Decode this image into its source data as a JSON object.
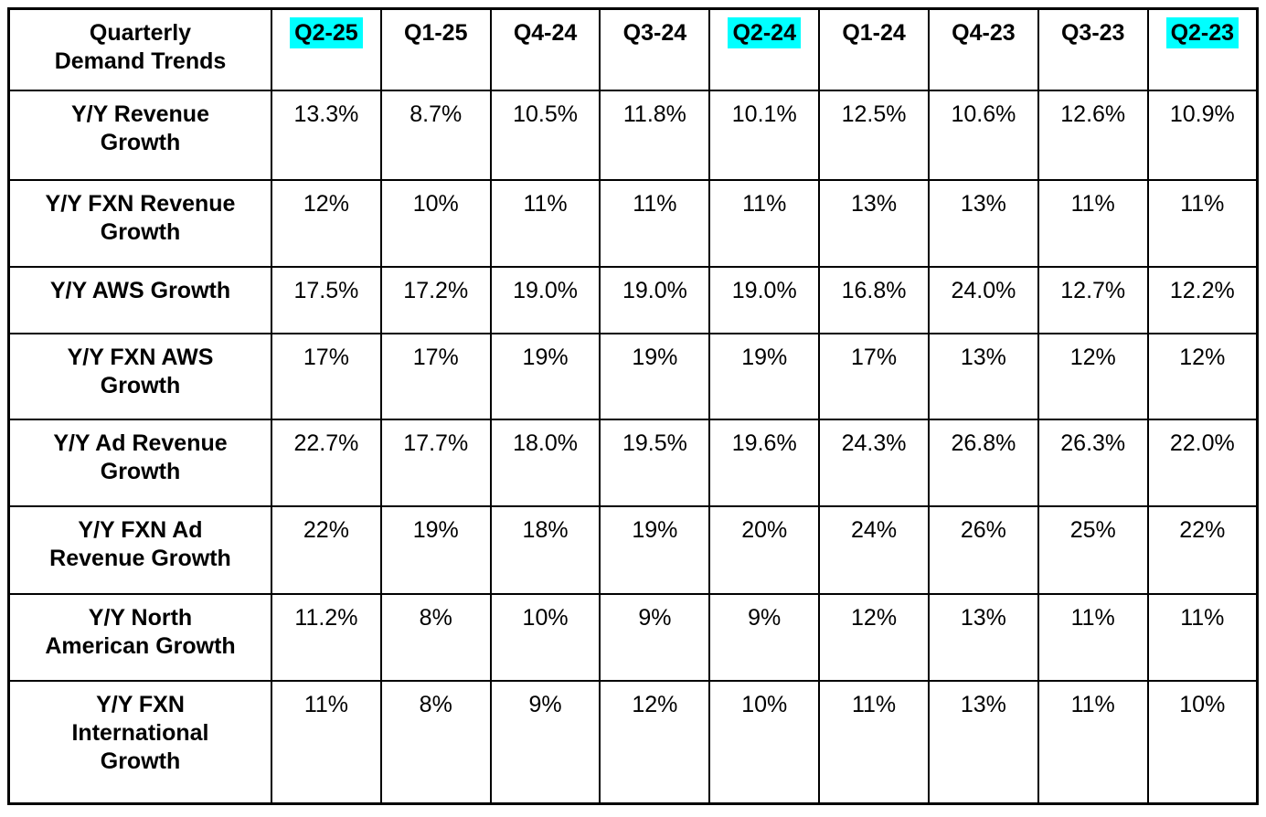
{
  "page": {
    "background_color": "#ffffff",
    "text_color": "#000000",
    "border_color": "#000000"
  },
  "table": {
    "title": "Quarterly\nDemand Trends",
    "highlight_color": "#00ffff",
    "columns": [
      {
        "label": "Q2-25",
        "highlighted": true
      },
      {
        "label": "Q1-25",
        "highlighted": false
      },
      {
        "label": "Q4-24",
        "highlighted": false
      },
      {
        "label": "Q3-24",
        "highlighted": false
      },
      {
        "label": "Q2-24",
        "highlighted": true
      },
      {
        "label": "Q1-24",
        "highlighted": false
      },
      {
        "label": "Q4-23",
        "highlighted": false
      },
      {
        "label": "Q3-23",
        "highlighted": false
      },
      {
        "label": "Q2-23",
        "highlighted": true
      }
    ],
    "rows": [
      {
        "label": "Y/Y Revenue\nGrowth",
        "values": [
          "13.3%",
          "8.7%",
          "10.5%",
          "11.8%",
          "10.1%",
          "12.5%",
          "10.6%",
          "12.6%",
          "10.9%"
        ]
      },
      {
        "label": "Y/Y FXN Revenue\nGrowth",
        "values": [
          "12%",
          "10%",
          "11%",
          "11%",
          "11%",
          "13%",
          "13%",
          "11%",
          "11%"
        ]
      },
      {
        "label": "Y/Y AWS Growth",
        "values": [
          "17.5%",
          "17.2%",
          "19.0%",
          "19.0%",
          "19.0%",
          "16.8%",
          "24.0%",
          "12.7%",
          "12.2%"
        ]
      },
      {
        "label": "Y/Y FXN AWS\nGrowth",
        "values": [
          "17%",
          "17%",
          "19%",
          "19%",
          "19%",
          "17%",
          "13%",
          "12%",
          "12%"
        ]
      },
      {
        "label": "Y/Y Ad Revenue\nGrowth",
        "values": [
          "22.7%",
          "17.7%",
          "18.0%",
          "19.5%",
          "19.6%",
          "24.3%",
          "26.8%",
          "26.3%",
          "22.0%"
        ]
      },
      {
        "label": "Y/Y FXN Ad\nRevenue Growth",
        "values": [
          "22%",
          "19%",
          "18%",
          "19%",
          "20%",
          "24%",
          "26%",
          "25%",
          "22%"
        ]
      },
      {
        "label": "Y/Y North\nAmerican Growth",
        "values": [
          "11.2%",
          "8%",
          "10%",
          "9%",
          "9%",
          "12%",
          "13%",
          "11%",
          "11%"
        ]
      },
      {
        "label": "Y/Y FXN\nInternational\nGrowth",
        "values": [
          "11%",
          "8%",
          "9%",
          "12%",
          "10%",
          "11%",
          "13%",
          "11%",
          "10%"
        ]
      }
    ]
  },
  "chart_data": {
    "type": "table",
    "title": "Quarterly Demand Trends",
    "categories": [
      "Q2-25",
      "Q1-25",
      "Q4-24",
      "Q3-24",
      "Q2-24",
      "Q1-24",
      "Q4-23",
      "Q3-23",
      "Q2-23"
    ],
    "highlighted_categories": [
      "Q2-25",
      "Q2-24",
      "Q2-23"
    ],
    "unit": "%",
    "series": [
      {
        "name": "Y/Y Revenue Growth",
        "values": [
          13.3,
          8.7,
          10.5,
          11.8,
          10.1,
          12.5,
          10.6,
          12.6,
          10.9
        ]
      },
      {
        "name": "Y/Y FXN Revenue Growth",
        "values": [
          12,
          10,
          11,
          11,
          11,
          13,
          13,
          11,
          11
        ]
      },
      {
        "name": "Y/Y AWS Growth",
        "values": [
          17.5,
          17.2,
          19.0,
          19.0,
          19.0,
          16.8,
          24.0,
          12.7,
          12.2
        ]
      },
      {
        "name": "Y/Y FXN AWS Growth",
        "values": [
          17,
          17,
          19,
          19,
          19,
          17,
          13,
          12,
          12
        ]
      },
      {
        "name": "Y/Y Ad Revenue Growth",
        "values": [
          22.7,
          17.7,
          18.0,
          19.5,
          19.6,
          24.3,
          26.8,
          26.3,
          22.0
        ]
      },
      {
        "name": "Y/Y FXN Ad Revenue Growth",
        "values": [
          22,
          19,
          18,
          19,
          20,
          24,
          26,
          25,
          22
        ]
      },
      {
        "name": "Y/Y North American Growth",
        "values": [
          11.2,
          8,
          10,
          9,
          9,
          12,
          13,
          11,
          11
        ]
      },
      {
        "name": "Y/Y FXN International Growth",
        "values": [
          11,
          8,
          9,
          12,
          10,
          11,
          13,
          11,
          10
        ]
      }
    ]
  }
}
